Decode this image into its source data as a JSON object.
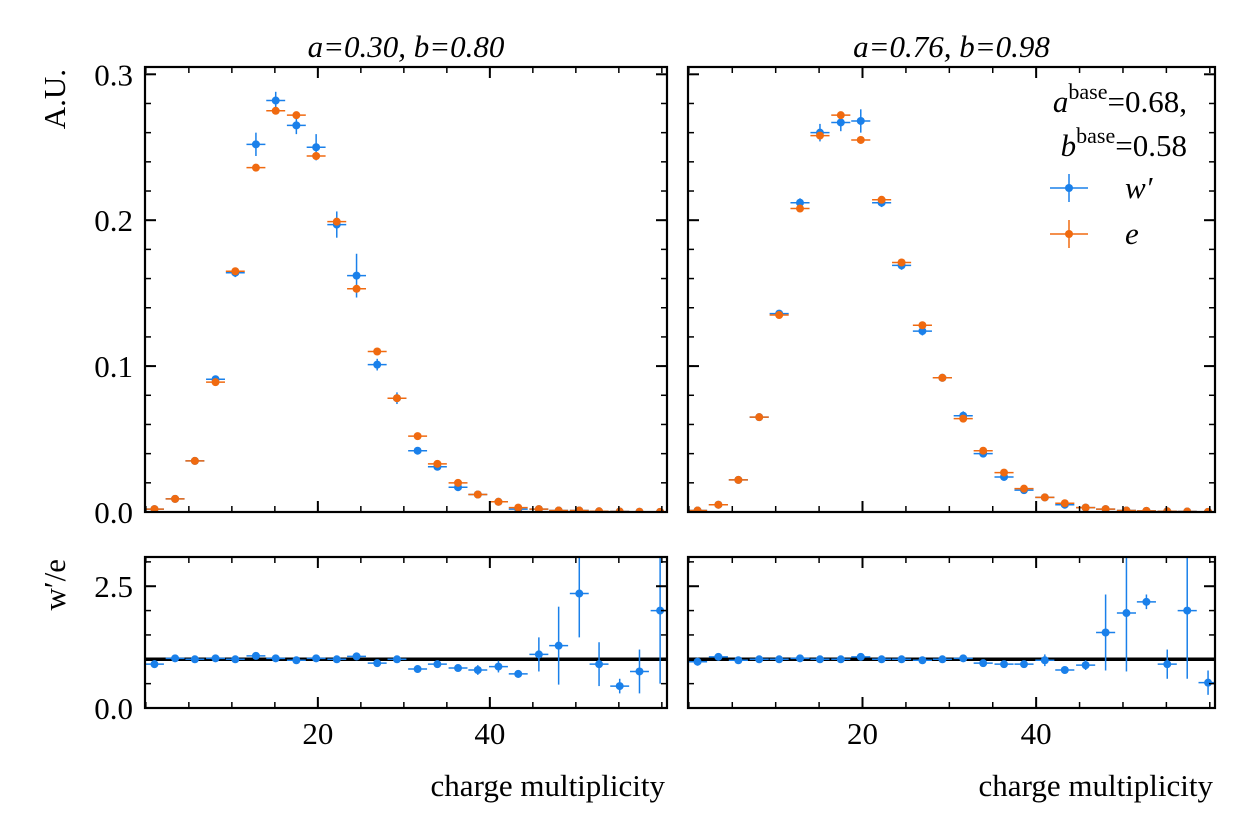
{
  "chart_data": [
    {
      "type": "errorbar",
      "title": "a=0.30, b=0.80",
      "ylabel": "A.U.",
      "x": [
        1.0,
        3.4,
        5.7,
        8.1,
        10.4,
        12.8,
        15.1,
        17.5,
        19.8,
        22.2,
        24.5,
        26.9,
        29.2,
        31.6,
        33.9,
        36.3,
        38.6,
        41.0,
        43.3,
        45.7,
        48.0,
        50.4,
        52.7,
        55.1,
        57.4,
        59.8
      ],
      "xerr": 1.1,
      "xlim": [
        -0.1,
        60.6
      ],
      "xticks": [
        20,
        40
      ],
      "ylim": [
        0,
        0.305
      ],
      "yticks": [
        {
          "value": 0,
          "label": "0.0"
        },
        0.1,
        0.2,
        0.3
      ],
      "series": [
        {
          "color": "#1a80ea",
          "values": [
            0.002,
            0.009,
            0.035,
            0.091,
            0.164,
            0.252,
            0.282,
            0.265,
            0.25,
            0.197,
            0.162,
            0.101,
            0.078,
            0.042,
            0.031,
            0.017,
            0.012,
            0.007,
            0.002,
            0.002,
            0.001,
            0.001,
            0.0005,
            0.0003,
            0.0002,
            0.0001
          ],
          "errors": [
            0.001,
            0.001,
            0.002,
            0.002,
            0.003,
            0.008,
            0.006,
            0.006,
            0.009,
            0.009,
            0.015,
            0.004,
            0.004,
            0.002,
            0.002,
            0.002,
            0.002,
            0.001,
            0.001,
            0.001,
            0.001,
            0.001,
            0.0005,
            0.0003,
            0.0002,
            0.0001
          ]
        },
        {
          "color": "#f06a10",
          "values": [
            0.002,
            0.009,
            0.035,
            0.089,
            0.165,
            0.236,
            0.275,
            0.272,
            0.244,
            0.199,
            0.153,
            0.11,
            0.078,
            0.052,
            0.033,
            0.02,
            0.012,
            0.007,
            0.003,
            0.002,
            0.001,
            0.001,
            0.0005,
            0.0003,
            0.0002,
            0.0001
          ]
        }
      ]
    },
    {
      "type": "errorbar",
      "title": "a=0.76, b=0.98",
      "legend": "upper right",
      "annotation": [
        {
          "base": "a",
          "sup": "base",
          "rest": "=0.68,"
        },
        {
          "base": "b",
          "sup": "base",
          "rest": "=0.58"
        }
      ],
      "x": [
        1.0,
        3.4,
        5.7,
        8.1,
        10.4,
        12.8,
        15.1,
        17.5,
        19.8,
        22.2,
        24.5,
        26.9,
        29.2,
        31.6,
        33.9,
        36.3,
        38.6,
        41.0,
        43.3,
        45.7,
        48.0,
        50.4,
        52.7,
        55.1,
        57.4,
        59.8
      ],
      "xerr": 1.1,
      "xlim": [
        -0.1,
        60.6
      ],
      "xticks": [
        20,
        40
      ],
      "ylim": [
        0,
        0.305
      ],
      "yticks": [
        0,
        0.1,
        0.2,
        0.3
      ],
      "series": [
        {
          "name": "w′",
          "color": "#1a80ea",
          "values": [
            0.001,
            0.005,
            0.022,
            0.065,
            0.136,
            0.212,
            0.26,
            0.267,
            0.268,
            0.212,
            0.169,
            0.124,
            0.092,
            0.066,
            0.04,
            0.024,
            0.015,
            0.01,
            0.005,
            0.003,
            0.002,
            0.001,
            0.0008,
            0.0005,
            0.0003,
            0.0001
          ],
          "errors": [
            0.001,
            0.001,
            0.001,
            0.002,
            0.002,
            0.003,
            0.006,
            0.006,
            0.008,
            0.003,
            0.003,
            0.003,
            0.002,
            0.003,
            0.002,
            0.002,
            0.001,
            0.001,
            0.001,
            0.001,
            0.001,
            0.001,
            0.0005,
            0.0003,
            0.0002,
            0.0001
          ]
        },
        {
          "name": "e",
          "color": "#f06a10",
          "values": [
            0.001,
            0.005,
            0.022,
            0.065,
            0.135,
            0.208,
            0.258,
            0.272,
            0.255,
            0.214,
            0.171,
            0.128,
            0.092,
            0.064,
            0.042,
            0.027,
            0.016,
            0.01,
            0.006,
            0.003,
            0.002,
            0.001,
            0.0008,
            0.0005,
            0.0003,
            0.0001
          ]
        }
      ]
    },
    {
      "type": "errorbar",
      "ylabel": "w′/e",
      "xlabel": "charge multiplicity",
      "hline": 1,
      "x": [
        1.0,
        3.4,
        5.7,
        8.1,
        10.4,
        12.8,
        15.1,
        17.5,
        19.8,
        22.2,
        24.5,
        26.9,
        29.2,
        31.6,
        33.9,
        36.3,
        38.6,
        41.0,
        43.3,
        45.7,
        48.0,
        50.4,
        52.7,
        55.1,
        57.4,
        59.8
      ],
      "xerr": 1.1,
      "xlim": [
        -0.1,
        60.6
      ],
      "xticks": [
        20,
        40
      ],
      "ylim": [
        0,
        3.1
      ],
      "yticks": [
        {
          "value": 0,
          "label": "0.0"
        },
        2.5
      ],
      "series": [
        {
          "color": "#1a80ea",
          "values": [
            0.9,
            1.02,
            1.0,
            1.02,
            1.0,
            1.07,
            1.02,
            0.98,
            1.02,
            1.0,
            1.06,
            0.92,
            1.0,
            0.8,
            0.9,
            0.82,
            0.78,
            0.85,
            0.7,
            1.1,
            1.28,
            2.35,
            0.9,
            0.45,
            0.75,
            2.0
          ],
          "errors": [
            0.08,
            0.05,
            0.04,
            0.04,
            0.04,
            0.05,
            0.04,
            0.04,
            0.05,
            0.05,
            0.08,
            0.05,
            0.05,
            0.05,
            0.05,
            0.06,
            0.1,
            0.12,
            0.08,
            0.35,
            0.8,
            0.9,
            0.45,
            0.15,
            0.45,
            1.5
          ]
        }
      ]
    },
    {
      "type": "errorbar",
      "xlabel": "charge multiplicity",
      "hline": 1,
      "x": [
        1.0,
        3.4,
        5.7,
        8.1,
        10.4,
        12.8,
        15.1,
        17.5,
        19.8,
        22.2,
        24.5,
        26.9,
        29.2,
        31.6,
        33.9,
        36.3,
        38.6,
        41.0,
        43.3,
        45.7,
        48.0,
        50.4,
        52.7,
        55.1,
        57.4,
        59.8
      ],
      "xerr": 1.1,
      "xlim": [
        -0.1,
        60.6
      ],
      "xticks": [
        20,
        40
      ],
      "ylim": [
        0,
        3.1
      ],
      "yticks": [
        0,
        2.5
      ],
      "series": [
        {
          "color": "#1a80ea",
          "values": [
            0.95,
            1.05,
            0.98,
            1.0,
            1.0,
            1.02,
            1.0,
            1.0,
            1.05,
            1.0,
            1.0,
            0.98,
            1.0,
            1.02,
            0.92,
            0.9,
            0.9,
            0.98,
            0.78,
            0.88,
            1.55,
            1.95,
            2.18,
            0.9,
            2.0,
            0.52
          ],
          "errors": [
            0.08,
            0.05,
            0.04,
            0.04,
            0.04,
            0.04,
            0.04,
            0.04,
            0.04,
            0.04,
            0.04,
            0.04,
            0.04,
            0.05,
            0.05,
            0.05,
            0.06,
            0.12,
            0.06,
            0.1,
            0.78,
            1.2,
            0.15,
            0.3,
            1.4,
            0.25
          ]
        }
      ]
    }
  ]
}
